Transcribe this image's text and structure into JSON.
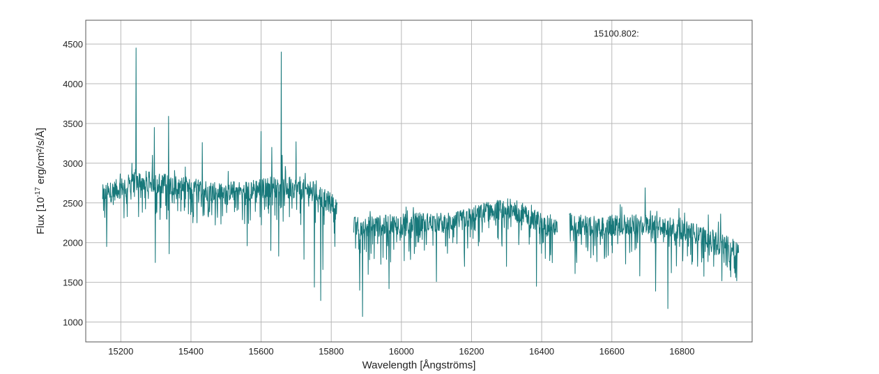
{
  "colors": {
    "line": "#17787a",
    "grid": "#b8b8b8",
    "frame": "#555555",
    "text": "#222222"
  },
  "annotation": {
    "text": "15100.802:",
    "x": 16580,
    "y": 4700
  },
  "chart_data": {
    "type": "line",
    "xlabel": "Wavelength [Ångströms]",
    "ylabel": {
      "prefix": "Flux [10",
      "exponent": "-17",
      "suffix": " erg/cm²/s/Å]"
    },
    "xlim": [
      15100,
      17000
    ],
    "ylim": [
      750,
      4800
    ],
    "x_ticks": [
      15200,
      15400,
      15600,
      15800,
      16000,
      16200,
      16400,
      16600,
      16800
    ],
    "x_tick_labels": [
      "15200",
      "15400",
      "15600",
      "15800",
      "16000",
      "16200",
      "16400",
      "16600",
      "16800"
    ],
    "y_ticks": [
      1000,
      1500,
      2000,
      2500,
      3000,
      3500,
      4000,
      4500
    ],
    "y_tick_labels": [
      "1000",
      "1500",
      "2000",
      "2500",
      "3000",
      "3500",
      "4000",
      "4500"
    ],
    "grid": true,
    "series": [
      {
        "continuum": [
          [
            15150,
            2600
          ],
          [
            15250,
            2780
          ],
          [
            15350,
            2730
          ],
          [
            15450,
            2650
          ],
          [
            15550,
            2650
          ],
          [
            15650,
            2720
          ],
          [
            15750,
            2650
          ],
          [
            15815,
            2450
          ],
          [
            15865,
            2200
          ],
          [
            15950,
            2220
          ],
          [
            16050,
            2250
          ],
          [
            16150,
            2250
          ],
          [
            16250,
            2400
          ],
          [
            16320,
            2430
          ],
          [
            16400,
            2250
          ],
          [
            16445,
            2200
          ],
          [
            16480,
            2250
          ],
          [
            16550,
            2200
          ],
          [
            16650,
            2220
          ],
          [
            16750,
            2230
          ],
          [
            16850,
            2100
          ],
          [
            16960,
            1900
          ]
        ],
        "segments": [
          [
            15148,
            15817
          ],
          [
            15864,
            16445
          ],
          [
            16479,
            16962
          ]
        ],
        "spikes_up": [
          [
            15243,
            4450
          ],
          [
            15296,
            3450
          ],
          [
            15336,
            3590
          ],
          [
            15290,
            3100
          ],
          [
            15232,
            3000
          ],
          [
            15600,
            3400
          ],
          [
            15657,
            4400
          ],
          [
            15660,
            3100
          ],
          [
            15700,
            3270
          ],
          [
            15432,
            3260
          ],
          [
            15630,
            3200
          ],
          [
            16695,
            2690
          ],
          [
            16710,
            2400
          ],
          [
            16875,
            2350
          ],
          [
            16910,
            2360
          ]
        ],
        "spikes_down": [
          [
            15160,
            1950
          ],
          [
            15298,
            1750
          ],
          [
            15338,
            1860
          ],
          [
            15405,
            2250
          ],
          [
            15560,
            1960
          ],
          [
            15628,
            1900
          ],
          [
            15650,
            1830
          ],
          [
            15722,
            1790
          ],
          [
            15752,
            1440
          ],
          [
            15770,
            1270
          ],
          [
            15776,
            1660
          ],
          [
            15889,
            1070
          ],
          [
            15881,
            1400
          ],
          [
            15905,
            1600
          ],
          [
            15965,
            1420
          ],
          [
            16100,
            1510
          ],
          [
            16180,
            1700
          ],
          [
            16300,
            1700
          ],
          [
            16385,
            1450
          ],
          [
            16410,
            1800
          ],
          [
            16495,
            1610
          ],
          [
            16580,
            1850
          ],
          [
            16680,
            1580
          ],
          [
            16725,
            1390
          ],
          [
            16760,
            1170
          ],
          [
            16770,
            1620
          ],
          [
            16830,
            1760
          ],
          [
            16920,
            1750
          ]
        ]
      }
    ]
  }
}
